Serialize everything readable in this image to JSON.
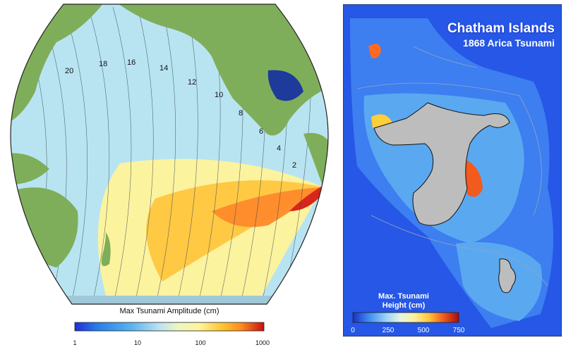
{
  "left_map": {
    "contour_labels": [
      "20",
      "18",
      "16",
      "14",
      "12",
      "10",
      "8",
      "6",
      "4",
      "2"
    ],
    "colorbar": {
      "title": "Max Tsunami Amplitude (cm)",
      "ticks": [
        "1",
        "10",
        "100",
        "1000"
      ],
      "colors": [
        "#1f2fd8",
        "#2a7de8",
        "#5ab4f0",
        "#a8dcf0",
        "#e8f4c8",
        "#fff39a",
        "#ffd23c",
        "#ff9a28",
        "#ee4a18",
        "#c80f0f"
      ]
    }
  },
  "right_map": {
    "title": "Chatham Islands",
    "subtitle": "1868 Arica Tsunami",
    "colorbar": {
      "title_line1": "Max. Tsunami",
      "title_line2": "Height (cm)",
      "ticks": [
        "0",
        "250",
        "500",
        "750"
      ],
      "colors": [
        "#1a2fc8",
        "#2a5ee0",
        "#3d8cf0",
        "#66b3f5",
        "#9dd6f5",
        "#d8f0e8",
        "#fff29a",
        "#ffd03a",
        "#ff9a2a",
        "#f05a1c",
        "#d42510",
        "#a80c0c"
      ]
    }
  },
  "colors": {
    "ocean_left": "#b8e4f2",
    "land": "#7fae5a",
    "ocean_right_deep": "#2657e6",
    "island": "#bdbdbd"
  }
}
